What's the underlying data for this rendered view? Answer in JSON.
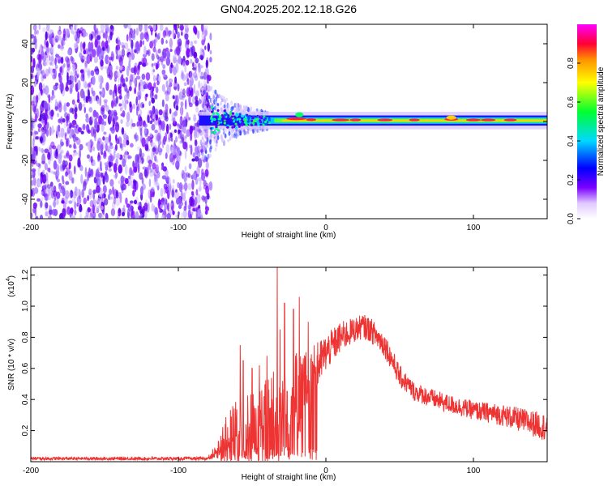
{
  "title": "GN04.2025.202.12.18.G26",
  "chart_data": [
    {
      "type": "heatmap",
      "xlabel": "Height of straight line (km)",
      "ylabel": "Frequency (Hz)",
      "xlim": [
        -200,
        150
      ],
      "ylim": [
        -50,
        50
      ],
      "xticks": [
        "-200",
        "-100",
        "0",
        "100"
      ],
      "xtick_values": [
        -200,
        -100,
        0,
        100
      ],
      "yticks": [
        "-40",
        "-20",
        "0",
        "20",
        "40"
      ],
      "ytick_values": [
        -40,
        -20,
        0,
        20,
        40
      ],
      "colorbar": {
        "label": "Normalized spectral amplitude",
        "range": [
          0,
          1
        ],
        "ticks": [
          "0.0",
          "0.2",
          "0.4",
          "0.6",
          "0.8"
        ],
        "tick_values": [
          0.0,
          0.2,
          0.4,
          0.6,
          0.8
        ],
        "colors": [
          "#ffffff",
          "#7a00ff",
          "#0000ff",
          "#00d0ff",
          "#00ff00",
          "#ffff00",
          "#ff8000",
          "#ff0033",
          "#ff00ff"
        ]
      },
      "features": {
        "noise_region_x": [
          -200,
          -80
        ],
        "carrier_start_x": -80,
        "carrier_frequency_hz": 0.5
      }
    },
    {
      "type": "line",
      "xlabel": "Height of straight line (km)",
      "ylabel": "SNR (10 * v/v)",
      "multiplier": "(x10",
      "multiplier_exp": "4",
      "xlim": [
        -200,
        150
      ],
      "ylim": [
        0,
        1.25
      ],
      "xticks": [
        "-200",
        "-100",
        "0",
        "100"
      ],
      "xtick_values": [
        -200,
        -100,
        0,
        100
      ],
      "yticks": [
        "0.2",
        "0.4",
        "0.6",
        "0.8",
        "1.0",
        "1.2"
      ],
      "ytick_values": [
        0.2,
        0.4,
        0.6,
        0.8,
        1.0,
        1.2
      ],
      "color": "#ee3333",
      "envelope": {
        "x": [
          -200,
          -100,
          -80,
          -75,
          -70,
          -60,
          -50,
          -40,
          -30,
          -20,
          -10,
          0,
          10,
          20,
          25,
          30,
          40,
          50,
          60,
          80,
          100,
          120,
          150
        ],
        "y": [
          0.02,
          0.02,
          0.02,
          0.05,
          0.12,
          0.2,
          0.22,
          0.25,
          0.3,
          0.4,
          0.55,
          0.7,
          0.8,
          0.85,
          0.87,
          0.85,
          0.75,
          0.55,
          0.45,
          0.38,
          0.33,
          0.3,
          0.22
        ],
        "spread": [
          0.01,
          0.01,
          0.01,
          0.03,
          0.12,
          0.25,
          0.22,
          0.3,
          0.4,
          0.3,
          0.18,
          0.12,
          0.1,
          0.08,
          0.08,
          0.08,
          0.08,
          0.07,
          0.06,
          0.06,
          0.06,
          0.07,
          0.09
        ]
      },
      "spikes": [
        {
          "x": -58,
          "y": 0.75
        },
        {
          "x": -56,
          "y": 0.65
        },
        {
          "x": -50,
          "y": 0.6
        },
        {
          "x": -45,
          "y": 0.62
        },
        {
          "x": -40,
          "y": 0.68
        },
        {
          "x": -33,
          "y": 1.25
        },
        {
          "x": -31,
          "y": 0.85
        },
        {
          "x": -28,
          "y": 1.02
        },
        {
          "x": -22,
          "y": 0.98
        },
        {
          "x": -18,
          "y": 1.06
        },
        {
          "x": -12,
          "y": 0.9
        }
      ]
    }
  ]
}
